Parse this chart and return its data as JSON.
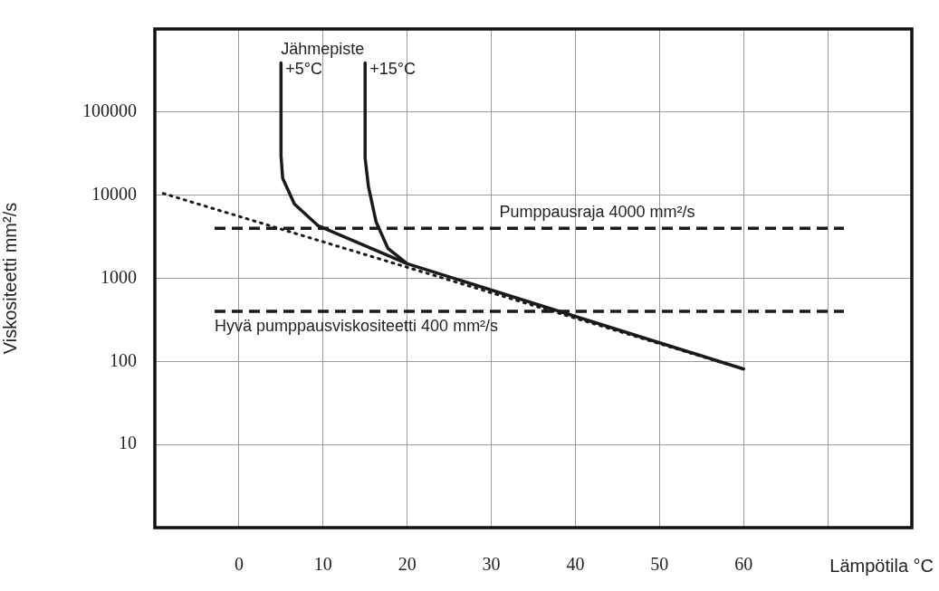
{
  "chart_data": {
    "type": "line",
    "xlabel": "Lämpötila °C",
    "ylabel": "Viskositeetti mm²/s",
    "log": "y",
    "grid": true,
    "legend": false,
    "marker": "none",
    "xlim": [
      -10,
      80
    ],
    "xticks": [
      {
        "value": -10,
        "label": null
      },
      0,
      10,
      20,
      30,
      40,
      50,
      60,
      {
        "value": 70,
        "label": null
      },
      {
        "value": 80,
        "label": null
      }
    ],
    "ylim": [
      1,
      1000000
    ],
    "yticks": [
      {
        "value": 1,
        "label": null
      },
      10,
      100,
      1000,
      10000,
      100000,
      {
        "value": 1000000,
        "label": null
      }
    ],
    "series": [
      {
        "color": "#1a1a1a",
        "line_style": "solid",
        "x": [
          5,
          5,
          5.2,
          6.6,
          9.4,
          20,
          60
        ],
        "values": [
          390000,
          30000,
          16000,
          7800,
          4300,
          1500,
          81
        ]
      },
      {
        "color": "#1a1a1a",
        "line_style": "solid",
        "x": [
          15,
          15,
          15.4,
          16.3,
          17.7,
          20
        ],
        "values": [
          390000,
          28000,
          12600,
          4800,
          2300,
          1500
        ]
      },
      {
        "color": "#1a1a1a",
        "line_style": "dotted",
        "x": [
          -9,
          58
        ],
        "values": [
          10500,
          93
        ]
      }
    ],
    "ref_lines": [
      {
        "axis": "y",
        "value": 4000,
        "label": "Pumppausraja 4000 mm²/s",
        "line_style": "dashed",
        "color": "#1a1a1a"
      },
      {
        "axis": "y",
        "value": 400,
        "label": "Hyvä pumppausviskositeetti 400 mm²/s",
        "line_style": "dashed",
        "color": "#1a1a1a"
      }
    ],
    "annotations": [
      "Jähmepiste",
      {
        "text": "+5°C",
        "x": 5,
        "y": 390000
      },
      {
        "text": "+15°C",
        "x": 15,
        "y": 390000
      }
    ]
  }
}
